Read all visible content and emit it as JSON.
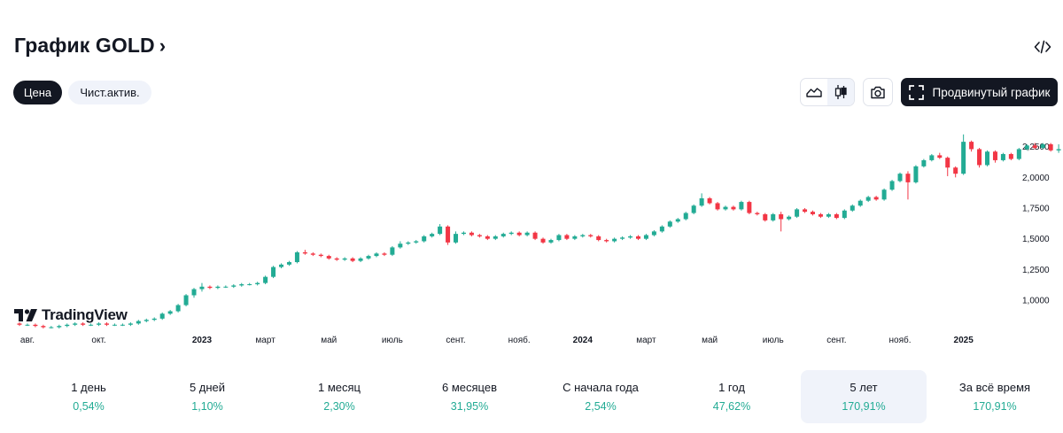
{
  "header": {
    "title": "График GOLD",
    "chevron": "›",
    "embed_icon": "code-icon"
  },
  "tabs": [
    {
      "label": "Цена",
      "active": true
    },
    {
      "label": "Чист.актив.",
      "active": false
    }
  ],
  "toolbar": {
    "area_icon": "area-chart-icon",
    "candle_icon": "candlestick-icon",
    "camera_icon": "camera-icon",
    "advanced_label": "Продвинутый график",
    "advanced_icon": "fullscreen-icon"
  },
  "colors": {
    "up": "#22ab94",
    "down": "#f23645",
    "text": "#131722",
    "accent_bg": "#f0f3fa"
  },
  "logo": {
    "text": "TradingView"
  },
  "chart_data": {
    "type": "candlestick",
    "title": "График GOLD",
    "y_ticks": [
      1.0,
      1.25,
      1.5,
      1.75,
      2.0,
      2.25
    ],
    "y_tick_labels": [
      "1,0000",
      "1,2500",
      "1,5000",
      "1,7500",
      "2,0000",
      "2,2500"
    ],
    "ylim": [
      0.755,
      2.5
    ],
    "x_labels": [
      {
        "label": "авг.",
        "idx": 1,
        "bold": false
      },
      {
        "label": "окт.",
        "idx": 10,
        "bold": false
      },
      {
        "label": "2023",
        "idx": 23,
        "bold": true
      },
      {
        "label": "март",
        "idx": 31,
        "bold": false
      },
      {
        "label": "май",
        "idx": 39,
        "bold": false
      },
      {
        "label": "июль",
        "idx": 47,
        "bold": false
      },
      {
        "label": "сент.",
        "idx": 55,
        "bold": false
      },
      {
        "label": "нояб.",
        "idx": 63,
        "bold": false
      },
      {
        "label": "2024",
        "idx": 71,
        "bold": true
      },
      {
        "label": "март",
        "idx": 79,
        "bold": false
      },
      {
        "label": "май",
        "idx": 87,
        "bold": false
      },
      {
        "label": "июль",
        "idx": 95,
        "bold": false
      },
      {
        "label": "сент.",
        "idx": 103,
        "bold": false
      },
      {
        "label": "нояб.",
        "idx": 111,
        "bold": false
      },
      {
        "label": "2025",
        "idx": 119,
        "bold": true
      }
    ],
    "candles": [
      [
        0.81,
        0.8,
        0.82,
        0.79
      ],
      [
        0.8,
        0.8,
        0.81,
        0.79
      ],
      [
        0.8,
        0.79,
        0.81,
        0.78
      ],
      [
        0.79,
        0.78,
        0.8,
        0.77
      ],
      [
        0.78,
        0.78,
        0.79,
        0.77
      ],
      [
        0.78,
        0.79,
        0.8,
        0.77
      ],
      [
        0.79,
        0.8,
        0.81,
        0.78
      ],
      [
        0.8,
        0.81,
        0.82,
        0.79
      ],
      [
        0.81,
        0.8,
        0.82,
        0.79
      ],
      [
        0.8,
        0.8,
        0.81,
        0.79
      ],
      [
        0.8,
        0.81,
        0.82,
        0.79
      ],
      [
        0.81,
        0.8,
        0.82,
        0.79
      ],
      [
        0.8,
        0.8,
        0.81,
        0.79
      ],
      [
        0.8,
        0.8,
        0.81,
        0.79
      ],
      [
        0.8,
        0.81,
        0.82,
        0.79
      ],
      [
        0.81,
        0.83,
        0.84,
        0.8
      ],
      [
        0.83,
        0.84,
        0.85,
        0.82
      ],
      [
        0.84,
        0.85,
        0.86,
        0.83
      ],
      [
        0.85,
        0.89,
        0.9,
        0.84
      ],
      [
        0.89,
        0.91,
        0.92,
        0.88
      ],
      [
        0.91,
        0.96,
        0.97,
        0.9
      ],
      [
        0.96,
        1.04,
        1.05,
        0.95
      ],
      [
        1.04,
        1.09,
        1.1,
        1.02
      ],
      [
        1.09,
        1.11,
        1.14,
        1.07
      ],
      [
        1.11,
        1.1,
        1.12,
        1.09
      ],
      [
        1.1,
        1.11,
        1.12,
        1.09
      ],
      [
        1.11,
        1.11,
        1.12,
        1.1
      ],
      [
        1.11,
        1.12,
        1.13,
        1.1
      ],
      [
        1.12,
        1.13,
        1.14,
        1.11
      ],
      [
        1.13,
        1.13,
        1.14,
        1.12
      ],
      [
        1.13,
        1.14,
        1.15,
        1.12
      ],
      [
        1.14,
        1.19,
        1.2,
        1.13
      ],
      [
        1.19,
        1.27,
        1.28,
        1.18
      ],
      [
        1.27,
        1.29,
        1.3,
        1.26
      ],
      [
        1.29,
        1.31,
        1.32,
        1.28
      ],
      [
        1.31,
        1.39,
        1.4,
        1.3
      ],
      [
        1.39,
        1.38,
        1.41,
        1.37
      ],
      [
        1.38,
        1.37,
        1.39,
        1.36
      ],
      [
        1.37,
        1.36,
        1.38,
        1.35
      ],
      [
        1.36,
        1.34,
        1.37,
        1.33
      ],
      [
        1.34,
        1.33,
        1.35,
        1.32
      ],
      [
        1.33,
        1.34,
        1.35,
        1.32
      ],
      [
        1.34,
        1.32,
        1.35,
        1.31
      ],
      [
        1.32,
        1.34,
        1.35,
        1.31
      ],
      [
        1.34,
        1.36,
        1.37,
        1.33
      ],
      [
        1.36,
        1.38,
        1.39,
        1.35
      ],
      [
        1.38,
        1.37,
        1.39,
        1.36
      ],
      [
        1.37,
        1.43,
        1.44,
        1.36
      ],
      [
        1.43,
        1.46,
        1.48,
        1.42
      ],
      [
        1.46,
        1.47,
        1.48,
        1.45
      ],
      [
        1.47,
        1.48,
        1.49,
        1.46
      ],
      [
        1.48,
        1.52,
        1.53,
        1.47
      ],
      [
        1.52,
        1.54,
        1.55,
        1.51
      ],
      [
        1.54,
        1.6,
        1.62,
        1.53
      ],
      [
        1.6,
        1.47,
        1.61,
        1.45
      ],
      [
        1.47,
        1.54,
        1.56,
        1.46
      ],
      [
        1.54,
        1.55,
        1.56,
        1.53
      ],
      [
        1.55,
        1.53,
        1.56,
        1.52
      ],
      [
        1.53,
        1.52,
        1.54,
        1.51
      ],
      [
        1.52,
        1.5,
        1.53,
        1.49
      ],
      [
        1.5,
        1.52,
        1.53,
        1.49
      ],
      [
        1.52,
        1.54,
        1.55,
        1.51
      ],
      [
        1.54,
        1.55,
        1.56,
        1.53
      ],
      [
        1.55,
        1.53,
        1.56,
        1.52
      ],
      [
        1.53,
        1.55,
        1.56,
        1.52
      ],
      [
        1.55,
        1.5,
        1.56,
        1.49
      ],
      [
        1.5,
        1.47,
        1.51,
        1.46
      ],
      [
        1.47,
        1.49,
        1.5,
        1.46
      ],
      [
        1.49,
        1.53,
        1.54,
        1.48
      ],
      [
        1.53,
        1.5,
        1.54,
        1.49
      ],
      [
        1.5,
        1.52,
        1.53,
        1.49
      ],
      [
        1.52,
        1.53,
        1.54,
        1.51
      ],
      [
        1.53,
        1.52,
        1.54,
        1.51
      ],
      [
        1.52,
        1.49,
        1.53,
        1.48
      ],
      [
        1.49,
        1.48,
        1.5,
        1.47
      ],
      [
        1.48,
        1.5,
        1.51,
        1.47
      ],
      [
        1.5,
        1.51,
        1.52,
        1.49
      ],
      [
        1.51,
        1.52,
        1.53,
        1.5
      ],
      [
        1.52,
        1.5,
        1.53,
        1.49
      ],
      [
        1.5,
        1.53,
        1.54,
        1.49
      ],
      [
        1.53,
        1.56,
        1.57,
        1.52
      ],
      [
        1.56,
        1.6,
        1.61,
        1.55
      ],
      [
        1.6,
        1.64,
        1.65,
        1.59
      ],
      [
        1.64,
        1.66,
        1.67,
        1.63
      ],
      [
        1.66,
        1.71,
        1.72,
        1.65
      ],
      [
        1.71,
        1.77,
        1.78,
        1.7
      ],
      [
        1.77,
        1.83,
        1.87,
        1.76
      ],
      [
        1.83,
        1.79,
        1.84,
        1.78
      ],
      [
        1.79,
        1.74,
        1.8,
        1.73
      ],
      [
        1.74,
        1.76,
        1.77,
        1.73
      ],
      [
        1.76,
        1.74,
        1.77,
        1.73
      ],
      [
        1.74,
        1.8,
        1.81,
        1.73
      ],
      [
        1.8,
        1.71,
        1.81,
        1.7
      ],
      [
        1.71,
        1.7,
        1.72,
        1.69
      ],
      [
        1.7,
        1.65,
        1.71,
        1.64
      ],
      [
        1.65,
        1.7,
        1.71,
        1.64
      ],
      [
        1.7,
        1.66,
        1.72,
        1.56
      ],
      [
        1.66,
        1.68,
        1.69,
        1.65
      ],
      [
        1.68,
        1.74,
        1.75,
        1.67
      ],
      [
        1.74,
        1.72,
        1.75,
        1.71
      ],
      [
        1.72,
        1.7,
        1.73,
        1.69
      ],
      [
        1.7,
        1.68,
        1.71,
        1.67
      ],
      [
        1.68,
        1.7,
        1.71,
        1.67
      ],
      [
        1.7,
        1.67,
        1.71,
        1.66
      ],
      [
        1.67,
        1.73,
        1.74,
        1.66
      ],
      [
        1.73,
        1.77,
        1.78,
        1.72
      ],
      [
        1.77,
        1.81,
        1.82,
        1.76
      ],
      [
        1.81,
        1.84,
        1.85,
        1.8
      ],
      [
        1.84,
        1.82,
        1.85,
        1.81
      ],
      [
        1.82,
        1.9,
        1.91,
        1.81
      ],
      [
        1.9,
        1.97,
        1.98,
        1.89
      ],
      [
        1.97,
        2.03,
        2.04,
        1.96
      ],
      [
        2.03,
        1.96,
        2.05,
        1.82
      ],
      [
        1.96,
        2.09,
        2.1,
        1.95
      ],
      [
        2.09,
        2.14,
        2.15,
        2.08
      ],
      [
        2.14,
        2.18,
        2.19,
        2.13
      ],
      [
        2.18,
        2.16,
        2.2,
        2.15
      ],
      [
        2.16,
        2.08,
        2.17,
        2.01
      ],
      [
        2.08,
        2.03,
        2.09,
        2.0
      ],
      [
        2.03,
        2.29,
        2.35,
        2.02
      ],
      [
        2.29,
        2.23,
        2.3,
        2.21
      ],
      [
        2.23,
        2.1,
        2.24,
        2.08
      ],
      [
        2.1,
        2.21,
        2.22,
        2.09
      ],
      [
        2.21,
        2.14,
        2.22,
        2.12
      ],
      [
        2.14,
        2.19,
        2.2,
        2.13
      ],
      [
        2.19,
        2.15,
        2.2,
        2.14
      ],
      [
        2.15,
        2.23,
        2.24,
        2.14
      ],
      [
        2.23,
        2.26,
        2.27,
        2.22
      ],
      [
        2.26,
        2.24,
        2.28,
        2.23
      ],
      [
        2.24,
        2.27,
        2.28,
        2.23
      ],
      [
        2.27,
        2.22,
        2.28,
        2.21
      ],
      [
        2.22,
        2.23,
        2.27,
        2.2
      ]
    ]
  },
  "periods": [
    {
      "label": "1 день",
      "value": "0,54%",
      "selected": false
    },
    {
      "label": "5 дней",
      "value": "1,10%",
      "selected": false
    },
    {
      "label": "1 месяц",
      "value": "2,30%",
      "selected": false
    },
    {
      "label": "6 месяцев",
      "value": "31,95%",
      "selected": false
    },
    {
      "label": "С начала года",
      "value": "2,54%",
      "selected": false
    },
    {
      "label": "1 год",
      "value": "47,62%",
      "selected": false
    },
    {
      "label": "5 лет",
      "value": "170,91%",
      "selected": true
    },
    {
      "label": "За всё время",
      "value": "170,91%",
      "selected": false
    }
  ]
}
